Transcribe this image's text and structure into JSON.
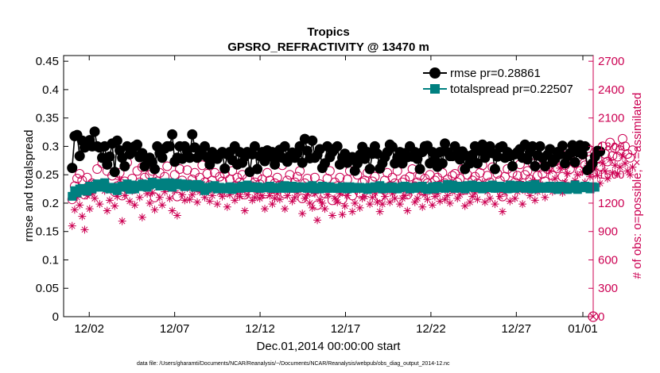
{
  "chart_data": {
    "type": "line",
    "title": "Tropics",
    "subtitle": "GPSRO_REFRACTIVITY @ 13470 m",
    "xlabel": "Dec.01,2014 00:00:00 start",
    "ylabel_left": "rmse and totalspread",
    "ylabel_right": "# of obs: o=possible; ×=assimilated",
    "footnote": "data file: /Users/gharamti/Documents/NCAR/Reanalysis/~/Documents/NCAR/Reanalysis/webpub/obs_diag_output_2014-12.nc",
    "x_range_days": [
      0.5,
      31.5
    ],
    "x_ticks": [
      {
        "day": 2,
        "label": "12/02"
      },
      {
        "day": 7,
        "label": "12/07"
      },
      {
        "day": 12,
        "label": "12/12"
      },
      {
        "day": 17,
        "label": "12/17"
      },
      {
        "day": 22,
        "label": "12/22"
      },
      {
        "day": 27,
        "label": "12/27"
      },
      {
        "day": 32,
        "label": "01/01"
      }
    ],
    "ylim_left": [
      0,
      0.46
    ],
    "yticks_left": [
      "0",
      "0.05",
      "0.1",
      "0.15",
      "0.2",
      "0.25",
      "0.3",
      "0.35",
      "0.4",
      "0.45"
    ],
    "ylim_right": [
      0,
      2760
    ],
    "yticks_right": [
      "0",
      "300",
      "600",
      "900",
      "1200",
      "1500",
      "1800",
      "2100",
      "2400",
      "2700"
    ],
    "legend_position": "top-right",
    "series": [
      {
        "name": "rmse pr=0.28861",
        "color": "#000000",
        "marker": "circle",
        "axis": "left",
        "values": [
          0.262,
          0.318,
          0.32,
          0.283,
          0.31,
          0.298,
          0.301,
          0.311,
          0.3,
          0.326,
          0.3,
          0.298,
          0.28,
          0.3,
          0.268,
          0.282,
          0.305,
          0.255,
          0.31,
          0.293,
          0.28,
          0.265,
          0.3,
          0.286,
          0.29,
          0.3,
          0.303,
          0.281,
          0.288,
          0.265,
          0.278,
          0.28,
          0.272,
          0.26,
          0.3,
          0.288,
          0.28,
          0.296,
          0.3,
          0.3,
          0.321,
          0.273,
          0.28,
          0.3,
          0.278,
          0.3,
          0.291,
          0.28,
          0.321,
          0.298,
          0.28,
          0.291,
          0.285,
          0.3,
          0.281,
          0.268,
          0.29,
          0.282,
          0.278,
          0.286,
          0.29,
          0.261,
          0.286,
          0.29,
          0.276,
          0.3,
          0.268,
          0.29,
          0.271,
          0.282,
          0.29,
          0.255,
          0.286,
          0.3,
          0.26,
          0.283,
          0.29,
          0.274,
          0.293,
          0.282,
          0.29,
          0.268,
          0.282,
          0.294,
          0.28,
          0.3,
          0.273,
          0.283,
          0.289,
          0.28,
          0.288,
          0.3,
          0.271,
          0.313,
          0.292,
          0.279,
          0.31,
          0.28,
          0.285,
          0.295,
          0.262,
          0.27,
          0.3,
          0.281,
          0.29,
          0.296,
          0.3,
          0.268,
          0.28,
          0.287,
          0.271,
          0.28,
          0.281,
          0.257,
          0.27,
          0.285,
          0.299,
          0.278,
          0.29,
          0.26,
          0.287,
          0.3,
          0.287,
          0.261,
          0.27,
          0.281,
          0.29,
          0.303,
          0.299,
          0.27,
          0.28,
          0.29,
          0.27,
          0.288,
          0.281,
          0.3,
          0.282,
          0.29,
          0.278,
          0.26,
          0.29,
          0.3,
          0.301,
          0.27,
          0.29,
          0.278,
          0.264,
          0.29,
          0.27,
          0.305,
          0.29,
          0.283,
          0.283,
          0.3,
          0.288,
          0.277,
          0.291,
          0.26,
          0.283,
          0.27,
          0.285,
          0.3,
          0.27,
          0.292,
          0.303,
          0.28,
          0.295,
          0.3,
          0.288,
          0.26,
          0.282,
          0.298,
          0.3,
          0.28,
          0.29,
          0.283,
          0.265,
          0.286,
          0.29,
          0.295,
          0.28,
          0.303,
          0.277,
          0.29,
          0.3,
          0.265,
          0.284,
          0.3,
          0.28,
          0.265,
          0.285,
          0.295,
          0.272,
          0.278,
          0.29,
          0.286,
          0.301,
          0.27,
          0.283,
          0.288,
          0.302,
          0.272,
          0.29,
          0.302,
          0.286,
          0.3,
          0.258,
          0.262,
          0.27,
          0.282,
          0.292,
          0.291
        ]
      },
      {
        "name": "totalspread pr=0.22507",
        "color": "#008080",
        "marker": "square",
        "axis": "left",
        "values": [
          0.212,
          0.222,
          0.218,
          0.225,
          0.226,
          0.222,
          0.221,
          0.23,
          0.225,
          0.228,
          0.234,
          0.229,
          0.228,
          0.236,
          0.227,
          0.225,
          0.228,
          0.227,
          0.222,
          0.228,
          0.23,
          0.228,
          0.234,
          0.224,
          0.232,
          0.225,
          0.231,
          0.229,
          0.234,
          0.233,
          0.228,
          0.232,
          0.237,
          0.234,
          0.235,
          0.23,
          0.231,
          0.236,
          0.23,
          0.236,
          0.228,
          0.232,
          0.235,
          0.232,
          0.234,
          0.229,
          0.233,
          0.232,
          0.231,
          0.228,
          0.233,
          0.231,
          0.228,
          0.222,
          0.226,
          0.228,
          0.229,
          0.231,
          0.225,
          0.228,
          0.226,
          0.225,
          0.227,
          0.229,
          0.224,
          0.227,
          0.228,
          0.226,
          0.23,
          0.227,
          0.232,
          0.229,
          0.227,
          0.228,
          0.229,
          0.226,
          0.228,
          0.227,
          0.227,
          0.23,
          0.226,
          0.226,
          0.228,
          0.226,
          0.229,
          0.231,
          0.226,
          0.228,
          0.23,
          0.226,
          0.227,
          0.229,
          0.228,
          0.227,
          0.226,
          0.229,
          0.231,
          0.225,
          0.228,
          0.225,
          0.23,
          0.227,
          0.226,
          0.229,
          0.226,
          0.227,
          0.226,
          0.226,
          0.229,
          0.227,
          0.225,
          0.229,
          0.226,
          0.228,
          0.226,
          0.228,
          0.227,
          0.226,
          0.224,
          0.228,
          0.226,
          0.229,
          0.227,
          0.231,
          0.225,
          0.228,
          0.226,
          0.226,
          0.229,
          0.226,
          0.225,
          0.227,
          0.229,
          0.23,
          0.228,
          0.225,
          0.228,
          0.226,
          0.229,
          0.228,
          0.23,
          0.226,
          0.224,
          0.226,
          0.229,
          0.225,
          0.23,
          0.227,
          0.228,
          0.226,
          0.233,
          0.228,
          0.232,
          0.226,
          0.228,
          0.23,
          0.227,
          0.225,
          0.231,
          0.228,
          0.232,
          0.227,
          0.23,
          0.229,
          0.225,
          0.23,
          0.227,
          0.229,
          0.232,
          0.226,
          0.228,
          0.23,
          0.227,
          0.229,
          0.225,
          0.232,
          0.228,
          0.226,
          0.231,
          0.228,
          0.23,
          0.226,
          0.227,
          0.231,
          0.225,
          0.233,
          0.228,
          0.226,
          0.229,
          0.226,
          0.228,
          0.23,
          0.226,
          0.229,
          0.224,
          0.23,
          0.227,
          0.229,
          0.224,
          0.228,
          0.226,
          0.232,
          0.224,
          0.229,
          0.227,
          0.23,
          0.228,
          0.225,
          0.229,
          0.228
        ]
      },
      {
        "name": "possible obs",
        "color": "#cc0052",
        "marker": "open-circle",
        "axis": "right",
        "values": [
          1240,
          1380,
          1460,
          1510,
          1440,
          1290,
          1470,
          1330,
          1410,
          1400,
          1560,
          1390,
          1620,
          1410,
          1540,
          1360,
          1490,
          1320,
          1380,
          1520,
          1280,
          1430,
          1630,
          1390,
          1460,
          1350,
          1540,
          1420,
          1580,
          1470,
          1380,
          1500,
          1540,
          1260,
          1430,
          1520,
          1400,
          1480,
          1590,
          1410,
          1370,
          1500,
          1270,
          1560,
          1440,
          1380,
          1550,
          1400,
          1450,
          1520,
          1370,
          1470,
          1600,
          1420,
          1510,
          1390,
          1440,
          1520,
          1370,
          1480,
          1430,
          1510,
          1320,
          1450,
          1540,
          1380,
          1470,
          1420,
          1500,
          1290,
          1460,
          1530,
          1380,
          1420,
          1480,
          1400,
          1450,
          1300,
          1520,
          1440,
          1350,
          1410,
          1470,
          1390,
          1600,
          1300,
          1440,
          1500,
          1360,
          1420,
          1480,
          1540,
          1250,
          1410,
          1460,
          1360,
          1320,
          1470,
          1180,
          1400,
          1360,
          1300,
          1460,
          1540,
          1230,
          1420,
          1380,
          1470,
          1240,
          1330,
          1450,
          1540,
          1280,
          1360,
          1500,
          1310,
          1420,
          1440,
          1520,
          1350,
          1430,
          1480,
          1380,
          1270,
          1350,
          1440,
          1520,
          1380,
          1470,
          1410,
          1540,
          1360,
          1420,
          1450,
          1290,
          1480,
          1560,
          1380,
          1420,
          1490,
          1330,
          1460,
          1410,
          1500,
          1350,
          1440,
          1470,
          1390,
          1520,
          1410,
          1450,
          1370,
          1490,
          1510,
          1420,
          1460,
          1560,
          1340,
          1500,
          1380,
          1440,
          1480,
          1410,
          1520,
          1600,
          1380,
          1490,
          1420,
          1580,
          1360,
          1510,
          1440,
          1270,
          1480,
          1560,
          1390,
          1520,
          1420,
          1490,
          1610,
          1360,
          1500,
          1540,
          1450,
          1620,
          1400,
          1490,
          1580,
          1510,
          1430,
          1560,
          1720,
          1490,
          1640,
          1570,
          1750,
          1480,
          1600,
          1690,
          1560,
          1800,
          1620,
          1680,
          1540,
          1710,
          1600,
          1780,
          1660,
          1520,
          1740,
          1670,
          1590,
          1800,
          1720,
          1640,
          1840,
          1700,
          1780,
          1690,
          1760,
          1880,
          1800,
          1720,
          1680,
          1760
        ]
      },
      {
        "name": "assimilated obs",
        "color": "#cc0052",
        "marker": "asterisk",
        "axis": "right",
        "values": [
          960,
          1130,
          1260,
          1180,
          1060,
          920,
          1280,
          1140,
          1300,
          1250,
          1380,
          1190,
          1420,
          1330,
          1120,
          1230,
          1350,
          1170,
          1270,
          1450,
          1010,
          1280,
          1400,
          1220,
          1330,
          1180,
          1390,
          1260,
          1050,
          1360,
          1300,
          1200,
          1310,
          1130,
          1390,
          1260,
          1180,
          1320,
          1370,
          1250,
          1120,
          1330,
          1070,
          1380,
          1290,
          1230,
          1360,
          1240,
          1290,
          1340,
          1210,
          1320,
          1400,
          1260,
          1330,
          1220,
          1280,
          1350,
          1190,
          1310,
          1270,
          1340,
          1160,
          1290,
          1380,
          1230,
          1300,
          1270,
          1330,
          1120,
          1290,
          1360,
          1230,
          1260,
          1310,
          1250,
          1280,
          1140,
          1350,
          1280,
          1190,
          1250,
          1300,
          1240,
          1400,
          1140,
          1280,
          1340,
          1220,
          1260,
          1310,
          1360,
          1090,
          1250,
          1290,
          1200,
          1150,
          1300,
          1020,
          1240,
          1200,
          1140,
          1290,
          1370,
          1070,
          1250,
          1210,
          1300,
          1080,
          1170,
          1280,
          1360,
          1110,
          1200,
          1330,
          1150,
          1250,
          1270,
          1340,
          1190,
          1260,
          1310,
          1210,
          1110,
          1190,
          1270,
          1340,
          1210,
          1300,
          1250,
          1370,
          1190,
          1250,
          1280,
          1120,
          1310,
          1390,
          1210,
          1250,
          1320,
          1160,
          1290,
          1240,
          1330,
          1180,
          1270,
          1300,
          1220,
          1350,
          1240,
          1280,
          1200,
          1320,
          1340,
          1250,
          1290,
          1380,
          1170,
          1330,
          1210,
          1270,
          1310,
          1240,
          1350,
          1420,
          1210,
          1320,
          1250,
          1400,
          1190,
          1340,
          1270,
          1110,
          1310,
          1380,
          1220,
          1350,
          1250,
          1320,
          1430,
          1190,
          1330,
          1370,
          1280,
          1440,
          1230,
          1320,
          1400,
          1340,
          1260,
          1380,
          1540,
          1320,
          1460,
          1390,
          1570,
          1310,
          1420,
          1510,
          1380,
          1620,
          1440,
          1500,
          1370,
          1530,
          1420,
          1600,
          1480,
          1350,
          1560,
          1490,
          1410,
          1620,
          1540,
          1460,
          1660,
          1520,
          1600,
          1510,
          1580,
          1700,
          1620,
          1540,
          1500,
          1580
        ]
      }
    ],
    "final_point_marker": {
      "day": 32,
      "value": 0,
      "marker": "circle-x",
      "color": "#cc0052"
    }
  }
}
